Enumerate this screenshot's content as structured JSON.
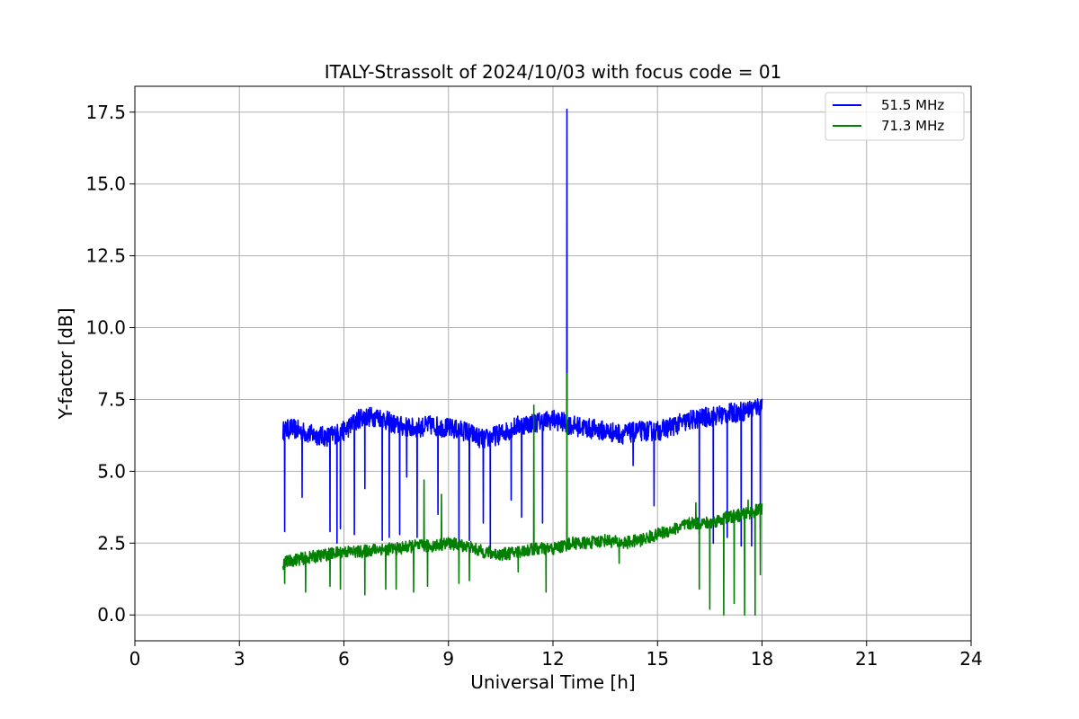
{
  "chart_data": {
    "type": "line",
    "title": "ITALY-Strassolt of 2024/10/03 with focus code = 01",
    "xlabel": "Universal Time [h]",
    "ylabel": "Y-factor [dB]",
    "xlim": [
      0,
      24
    ],
    "ylim": [
      -0.9,
      18.4
    ],
    "xticks": [
      "0",
      "3",
      "6",
      "9",
      "12",
      "15",
      "18",
      "21",
      "24"
    ],
    "xtick_values": [
      0,
      3,
      6,
      9,
      12,
      15,
      18,
      21,
      24
    ],
    "yticks": [
      "0.0",
      "2.5",
      "5.0",
      "7.5",
      "10.0",
      "12.5",
      "15.0",
      "17.5"
    ],
    "ytick_values": [
      0,
      2.5,
      5,
      7.5,
      10,
      12.5,
      15,
      17.5
    ],
    "grid": true,
    "legend_position": "top-right",
    "series": [
      {
        "name": "51.5 MHz",
        "color": "#0000ff",
        "x": [
          4.25,
          4.5,
          5.0,
          5.5,
          6.0,
          6.5,
          7.0,
          7.5,
          8.0,
          8.5,
          9.0,
          9.5,
          10.0,
          10.5,
          11.0,
          11.5,
          12.0,
          12.3,
          12.5,
          13.0,
          13.5,
          14.0,
          14.5,
          15.0,
          15.5,
          16.0,
          16.5,
          17.0,
          17.5,
          18.0
        ],
        "y": [
          6.4,
          6.5,
          6.3,
          6.2,
          6.4,
          6.9,
          6.9,
          6.6,
          6.5,
          6.6,
          6.5,
          6.4,
          6.1,
          6.3,
          6.6,
          6.7,
          6.8,
          6.7,
          6.6,
          6.5,
          6.4,
          6.3,
          6.4,
          6.4,
          6.6,
          6.8,
          6.9,
          7.0,
          7.1,
          7.3
        ],
        "dips": [
          {
            "x": 4.3,
            "y": 2.9
          },
          {
            "x": 4.8,
            "y": 4.1
          },
          {
            "x": 5.6,
            "y": 2.9
          },
          {
            "x": 5.8,
            "y": 2.5
          },
          {
            "x": 5.9,
            "y": 3.0
          },
          {
            "x": 6.3,
            "y": 2.8
          },
          {
            "x": 6.6,
            "y": 4.4
          },
          {
            "x": 7.1,
            "y": 2.6
          },
          {
            "x": 7.3,
            "y": 2.7
          },
          {
            "x": 7.6,
            "y": 2.8
          },
          {
            "x": 7.8,
            "y": 4.8
          },
          {
            "x": 8.1,
            "y": 2.7
          },
          {
            "x": 8.7,
            "y": 3.5
          },
          {
            "x": 9.3,
            "y": 2.5
          },
          {
            "x": 9.6,
            "y": 2.6
          },
          {
            "x": 10.0,
            "y": 3.2
          },
          {
            "x": 10.2,
            "y": 2.2
          },
          {
            "x": 10.8,
            "y": 4.0
          },
          {
            "x": 11.1,
            "y": 3.4
          },
          {
            "x": 11.7,
            "y": 3.2
          },
          {
            "x": 14.3,
            "y": 5.2
          },
          {
            "x": 14.9,
            "y": 3.8
          },
          {
            "x": 16.2,
            "y": 2.8
          },
          {
            "x": 16.6,
            "y": 2.5
          },
          {
            "x": 17.0,
            "y": 2.7
          },
          {
            "x": 17.4,
            "y": 2.4
          },
          {
            "x": 17.7,
            "y": 2.4
          },
          {
            "x": 17.95,
            "y": 3.0
          }
        ],
        "spikes": [
          {
            "x": 12.4,
            "y": 17.6
          }
        ]
      },
      {
        "name": "71.3 MHz",
        "color": "#008000",
        "x": [
          4.25,
          4.5,
          5.0,
          5.5,
          6.0,
          6.5,
          7.0,
          7.5,
          8.0,
          8.5,
          9.0,
          9.5,
          10.0,
          10.5,
          11.0,
          11.5,
          12.0,
          12.3,
          12.5,
          13.0,
          13.5,
          14.0,
          14.5,
          15.0,
          15.5,
          16.0,
          16.5,
          17.0,
          17.5,
          18.0
        ],
        "y": [
          1.8,
          1.9,
          2.0,
          2.1,
          2.2,
          2.2,
          2.3,
          2.3,
          2.4,
          2.4,
          2.5,
          2.4,
          2.2,
          2.1,
          2.2,
          2.3,
          2.3,
          2.4,
          2.5,
          2.5,
          2.6,
          2.5,
          2.6,
          2.8,
          3.0,
          3.2,
          3.2,
          3.4,
          3.5,
          3.7
        ],
        "dips": [
          {
            "x": 4.3,
            "y": 1.1
          },
          {
            "x": 4.9,
            "y": 0.8
          },
          {
            "x": 5.6,
            "y": 1.0
          },
          {
            "x": 5.9,
            "y": 0.9
          },
          {
            "x": 6.6,
            "y": 0.7
          },
          {
            "x": 7.2,
            "y": 0.9
          },
          {
            "x": 7.5,
            "y": 0.9
          },
          {
            "x": 8.0,
            "y": 0.8
          },
          {
            "x": 8.4,
            "y": 1.0
          },
          {
            "x": 9.3,
            "y": 1.1
          },
          {
            "x": 9.6,
            "y": 1.2
          },
          {
            "x": 11.0,
            "y": 1.5
          },
          {
            "x": 11.8,
            "y": 0.8
          },
          {
            "x": 13.9,
            "y": 1.8
          },
          {
            "x": 16.2,
            "y": 0.9
          },
          {
            "x": 16.5,
            "y": 0.2
          },
          {
            "x": 16.9,
            "y": 0.0
          },
          {
            "x": 17.2,
            "y": 0.4
          },
          {
            "x": 17.5,
            "y": 0.0
          },
          {
            "x": 17.8,
            "y": 0.0
          },
          {
            "x": 17.95,
            "y": 1.4
          }
        ],
        "spikes": [
          {
            "x": 8.3,
            "y": 4.7
          },
          {
            "x": 8.8,
            "y": 4.2
          },
          {
            "x": 11.45,
            "y": 7.3
          },
          {
            "x": 12.4,
            "y": 8.4
          },
          {
            "x": 16.1,
            "y": 3.9
          },
          {
            "x": 17.6,
            "y": 4.0
          }
        ]
      }
    ]
  }
}
